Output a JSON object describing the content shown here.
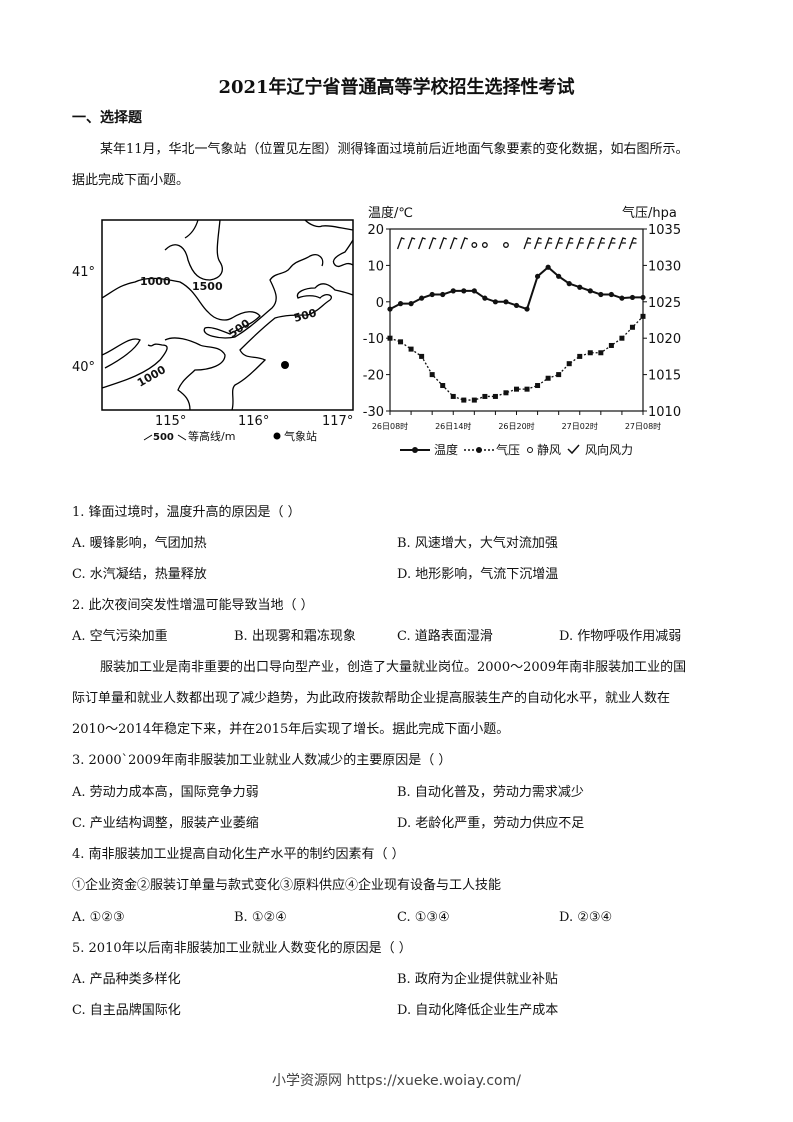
{
  "title": "2021年辽宁省普通高等学校招生选择性考试",
  "section": "一、选择题",
  "intro1": [
    "某年11月，华北一气象站（位置见左图）测得锋面过境前后近地面气象要素的变化数据，如右图所示。",
    "据此完成下面小题。"
  ],
  "map": {
    "lat_labels": [
      "41°",
      "40°"
    ],
    "lon_labels": [
      "115°",
      "116°",
      "117°"
    ],
    "contour_labels": [
      "1000",
      "1500",
      "500",
      "500",
      "1000"
    ],
    "legend_contour": "500",
    "legend_contour_text": "等高线/m",
    "legend_station": "气象站"
  },
  "chart_data": {
    "type": "line",
    "ylabel_left": "温度/℃",
    "ylabel_right": "气压/hpa",
    "yticks_left": [
      "20",
      "10",
      "0",
      "-10",
      "-20",
      "-30"
    ],
    "yticks_right": [
      "1035",
      "1030",
      "1025",
      "1020",
      "1015",
      "1010"
    ],
    "ylim_left": [
      -30,
      20
    ],
    "ylim_right": [
      1010,
      1035
    ],
    "xticks": [
      "26日08时",
      "26日14时",
      "26日20时",
      "27日02时",
      "27日08时"
    ],
    "series": [
      {
        "name": "温度",
        "axis": "left",
        "values": [
          -2,
          -0.5,
          -0.5,
          1,
          2,
          2,
          3,
          3,
          3,
          1,
          0,
          0,
          -1,
          -2,
          7,
          9.5,
          7,
          5,
          4,
          3,
          2,
          2,
          1,
          1.2,
          1.2
        ]
      },
      {
        "name": "气压",
        "axis": "right",
        "values": [
          1020,
          1019.5,
          1018.5,
          1017.5,
          1015,
          1013.5,
          1012,
          1011.5,
          1011.5,
          1012,
          1012,
          1012.5,
          1013,
          1013,
          1013.5,
          1014.5,
          1015,
          1016.5,
          1017.5,
          1018,
          1018,
          1019,
          1020,
          1021.5,
          1023
        ]
      }
    ],
    "legend": [
      "温度",
      "气压",
      "静风",
      "风向风力"
    ]
  },
  "q1": {
    "stem": "1. 锋面过境时，温度升高的原因是（      ）",
    "A": "A. 暖锋影响，气团加热",
    "B": "B. 风速增大，大气对流加强",
    "C": "C. 水汽凝结，热量释放",
    "D": "D. 地形影响，气流下沉增温"
  },
  "q2": {
    "stem": "2. 此次夜间突发性增温可能导致当地（      ）",
    "A": "A. 空气污染加重",
    "B": "B. 出现雾和霜冻现象",
    "C": "C. 道路表面湿滑",
    "D": "D. 作物呼吸作用减弱"
  },
  "intro2": [
    "服装加工业是南非重要的出口导向型产业，创造了大量就业岗位。2000～2009年南非服装加工业的国",
    "际订单量和就业人数都出现了减少趋势，为此政府拨款帮助企业提高服装生产的自动化水平，就业人数在",
    "2010～2014年稳定下来，并在2015年后实现了增长。据此完成下面小题。"
  ],
  "q3": {
    "stem": "3.  2000`2009年南非服装加工业就业人数减少的主要原因是（      ）",
    "A": "A.  劳动力成本高，国际竞争力弱",
    "B": "B.  自动化普及，劳动力需求减少",
    "C": "C.  产业结构调整，服装产业萎缩",
    "D": "D.  老龄化严重，劳动力供应不足"
  },
  "q4": {
    "stem": "4. 南非服装加工业提高自动化生产水平的制约因素有（      ）",
    "items": "①企业资金②服装订单量与款式变化③原料供应④企业现有设备与工人技能",
    "A": "A.  ①②③",
    "B": "B.  ①②④",
    "C": "C.  ①③④",
    "D": "D.  ②③④"
  },
  "q5": {
    "stem": "5. 2010年以后南非服装加工业就业人数变化的原因是（      ）",
    "A": "A.  产品种类多样化",
    "B": "B.  政府为企业提供就业补贴",
    "C": "C.  自主品牌国际化",
    "D": "D.  自动化降低企业生产成本"
  },
  "footer": "小学资源网 https://xueke.woiay.com/"
}
